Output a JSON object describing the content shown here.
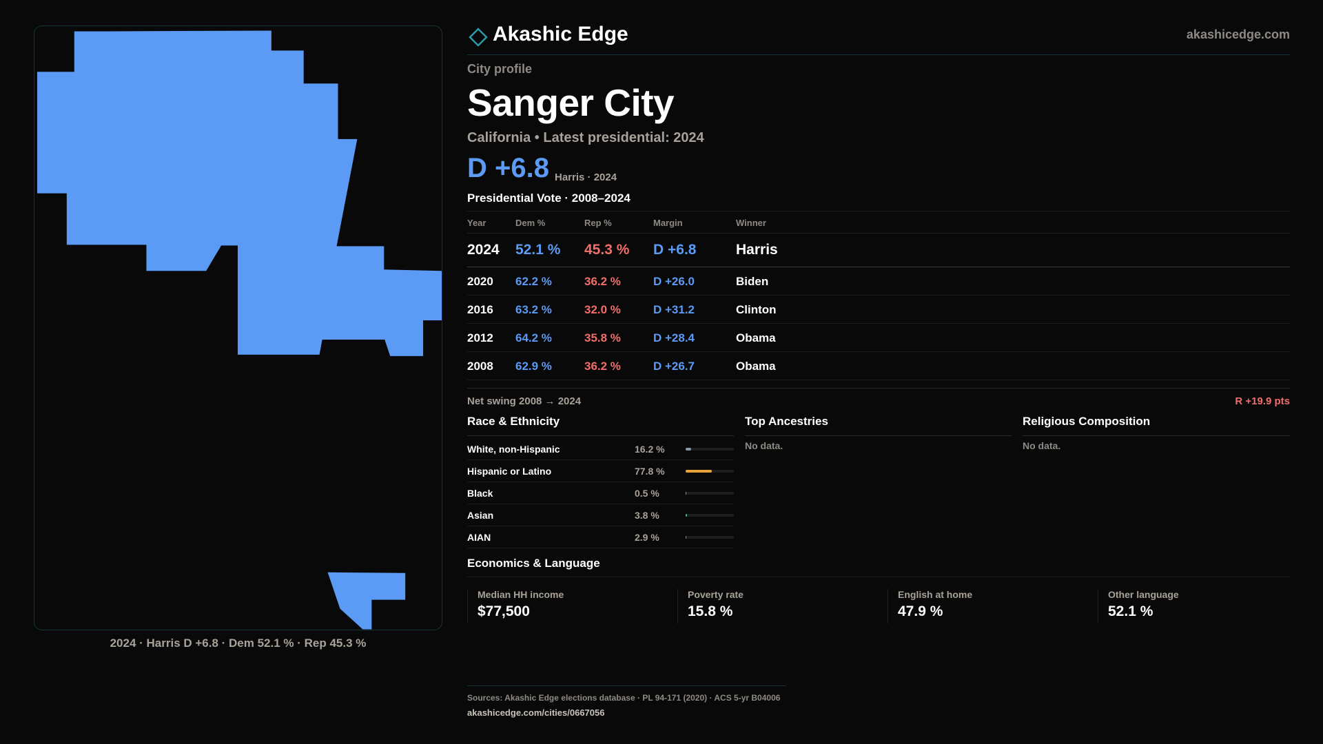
{
  "brand": {
    "name": "Akashic Edge",
    "site": "akashicedge.com"
  },
  "colors": {
    "dem": "#5b9bf5",
    "rep": "#f06f6a",
    "accent": "#2a9aa8",
    "map_fill": "#5b9bf5"
  },
  "map": {
    "fill_party": "dem",
    "caption": "2024 · Harris D +6.8 · Dem 52.1 % · Rep 45.3 %"
  },
  "profile": {
    "eyebrow": "City profile",
    "name": "Sanger City",
    "subtitle": "California • Latest presidential: 2024",
    "margin": "D +6.8",
    "margin_note": "Harris · 2024"
  },
  "vote": {
    "title": "Presidential Vote · 2008–2024",
    "headers": {
      "year": "Year",
      "dem": "Dem %",
      "rep": "Rep %",
      "margin": "Margin",
      "winner": "Winner"
    },
    "rows": [
      {
        "year": "2024",
        "dem": "52.1 %",
        "rep": "45.3 %",
        "margin": "D +6.8",
        "winner": "Harris"
      },
      {
        "year": "2020",
        "dem": "62.2 %",
        "rep": "36.2 %",
        "margin": "D +26.0",
        "winner": "Biden"
      },
      {
        "year": "2016",
        "dem": "63.2 %",
        "rep": "32.0 %",
        "margin": "D +31.2",
        "winner": "Clinton"
      },
      {
        "year": "2012",
        "dem": "64.2 %",
        "rep": "35.8 %",
        "margin": "D +28.4",
        "winner": "Obama"
      },
      {
        "year": "2008",
        "dem": "62.9 %",
        "rep": "36.2 %",
        "margin": "D +26.7",
        "winner": "Obama"
      }
    ],
    "swing_label": "Net swing 2008 → 2024",
    "swing_value": "R +19.9 pts"
  },
  "race": {
    "title": "Race & Ethnicity",
    "rows": [
      {
        "label": "White, non-Hispanic",
        "pct": "16.2 %",
        "value": 16.2,
        "color": "#8a96a8"
      },
      {
        "label": "Hispanic or Latino",
        "pct": "77.8 %",
        "value": 77.8,
        "color": "#e8a33a"
      },
      {
        "label": "Black",
        "pct": "0.5 %",
        "value": 0.5,
        "color": "#8a96a8"
      },
      {
        "label": "Asian",
        "pct": "3.8 %",
        "value": 3.8,
        "color": "#2fbf8f"
      },
      {
        "label": "AIAN",
        "pct": "2.9 %",
        "value": 2.9,
        "color": "#d8743a"
      }
    ]
  },
  "ancestries": {
    "title": "Top Ancestries",
    "empty": "No data."
  },
  "religion": {
    "title": "Religious Composition",
    "empty": "No data."
  },
  "economics": {
    "title": "Economics & Language",
    "items": [
      {
        "label": "Median HH income",
        "value": "$77,500"
      },
      {
        "label": "Poverty rate",
        "value": "15.8 %"
      },
      {
        "label": "English at home",
        "value": "47.9 %"
      },
      {
        "label": "Other language",
        "value": "52.1 %"
      }
    ]
  },
  "footer": {
    "sources": "Sources: Akashic Edge elections database · PL 94-171 (2020) · ACS 5-yr B04006",
    "url": "akashicedge.com/cities/0667056"
  }
}
